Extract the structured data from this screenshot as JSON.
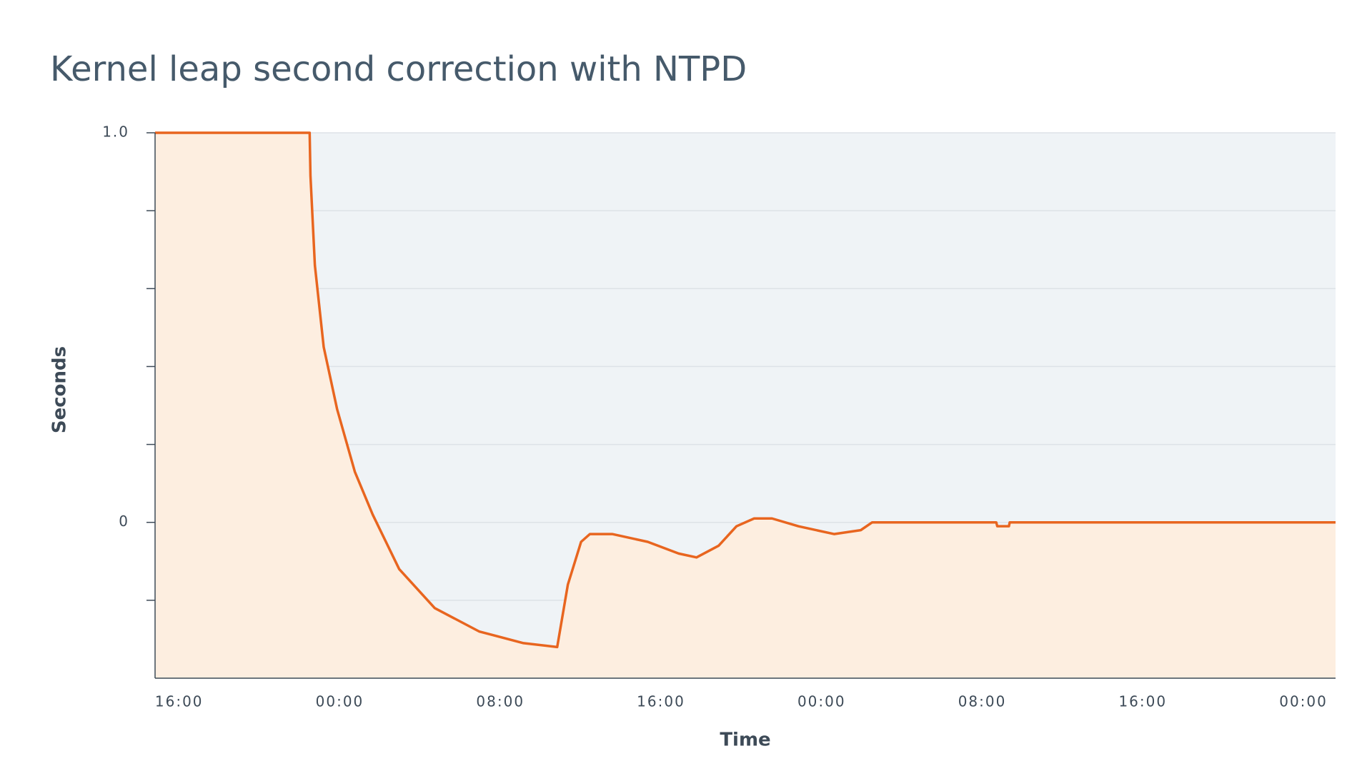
{
  "chart_data": {
    "type": "area-line",
    "title": "Kernel leap second correction with NTPD",
    "x_label": "Time",
    "y_label": "Seconds",
    "x": [
      -1.2,
      6.5,
      6.54,
      6.76,
      7.2,
      7.87,
      8.75,
      9.64,
      10.96,
      12.73,
      14.94,
      17.15,
      18.83,
      19.36,
      20.02,
      20.46,
      21.57,
      23.34,
      24.88,
      25.77,
      26.87,
      27.76,
      28.64,
      29.53,
      30.85,
      32.62,
      33.95,
      34.52,
      37.7,
      38.36,
      40.7,
      40.75,
      41.33,
      41.37,
      57.6
    ],
    "series": [
      {
        "color": "#e8651f",
        "fill": "#fdeee0",
        "values": [
          1.0,
          1.0,
          0.89,
          0.66,
          0.45,
          0.29,
          0.13,
          0.02,
          -0.12,
          -0.22,
          -0.28,
          -0.31,
          -0.32,
          -0.16,
          -0.05,
          -0.03,
          -0.03,
          -0.05,
          -0.08,
          -0.09,
          -0.06,
          -0.01,
          0.01,
          0.01,
          -0.01,
          -0.03,
          -0.02,
          0,
          0,
          0.0,
          0.0,
          -0.01,
          -0.01,
          0.0,
          0
        ]
      }
    ],
    "xlim": [
      -1.2,
      57.6
    ],
    "xticks": [
      {
        "value": 0,
        "label": "16:00"
      },
      {
        "value": 8,
        "label": "00:00"
      },
      {
        "value": 16,
        "label": "08:00"
      },
      {
        "value": 24,
        "label": "16:00"
      },
      {
        "value": 32,
        "label": "00:00"
      },
      {
        "value": 40,
        "label": "08:00"
      },
      {
        "value": 48,
        "label": "16:00"
      },
      {
        "value": 56,
        "label": "00:00"
      }
    ],
    "ylim": [
      -0.4,
      1.0
    ],
    "yticks": [
      {
        "value": 1,
        "label": "1.0"
      },
      0
    ],
    "yminor": [
      0.8,
      0.6,
      0.4,
      0.2,
      -0.2
    ],
    "grid": true,
    "plot_background": "#eff3f6"
  }
}
